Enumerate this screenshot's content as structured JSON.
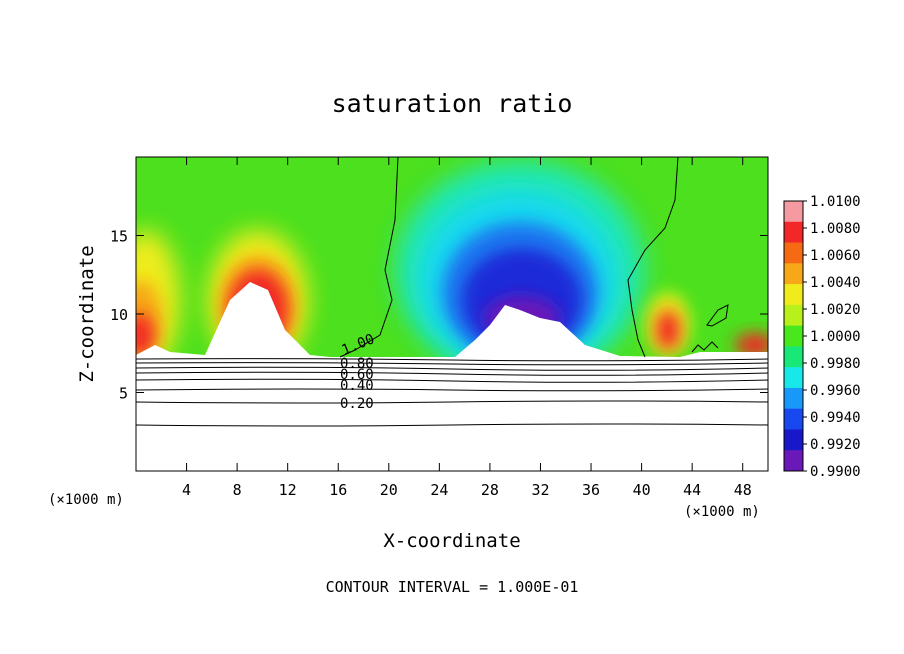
{
  "chart_data": {
    "type": "heatmap",
    "title": "saturation ratio",
    "xlabel": "X-coordinate",
    "ylabel": "Z-coordinate",
    "x_unit_left": "(×1000 m)",
    "x_unit_right": "(×1000 m)",
    "xlim": [
      0,
      50
    ],
    "ylim": [
      0,
      20
    ],
    "x_ticks": [
      4,
      8,
      12,
      16,
      20,
      24,
      28,
      32,
      36,
      40,
      44,
      48
    ],
    "y_ticks": [
      5,
      10,
      15
    ],
    "footnote": "CONTOUR INTERVAL = 1.000E-01",
    "colorbar": {
      "range": [
        0.99,
        1.01
      ],
      "labels": [
        "1.0100",
        "1.0080",
        "1.0060",
        "1.0040",
        "1.0020",
        "1.0000",
        "0.9980",
        "0.9960",
        "0.9940",
        "0.9920",
        "0.9900"
      ],
      "colors": [
        "#f49aa0",
        "#f22828",
        "#f66a14",
        "#f6a818",
        "#f0ec1c",
        "#b8f01c",
        "#48e81c",
        "#18e878",
        "#18e8e8",
        "#1898f8",
        "#1848f0",
        "#1818c8",
        "#6a18b8"
      ]
    },
    "contour_labels": [
      "1.00",
      "0.80",
      "0.60",
      "0.40",
      "0.20"
    ],
    "contour_levels_below": [
      0.2,
      0.3,
      0.4,
      0.5,
      0.6,
      0.7,
      0.8,
      0.9
    ],
    "field_regions": [
      {
        "name": "supersaturated-west",
        "x": 2,
        "z": 11,
        "value": 1.007
      },
      {
        "name": "supersaturated-central-west",
        "x": 10,
        "z": 12,
        "value": 1.008
      },
      {
        "name": "subsaturated-center",
        "x": 30,
        "z": 12,
        "value": 0.991
      },
      {
        "name": "supersaturated-east",
        "x": 42.5,
        "z": 10,
        "value": 1.006
      },
      {
        "name": "background",
        "x": 24,
        "z": 18,
        "value": 1.0
      }
    ]
  }
}
